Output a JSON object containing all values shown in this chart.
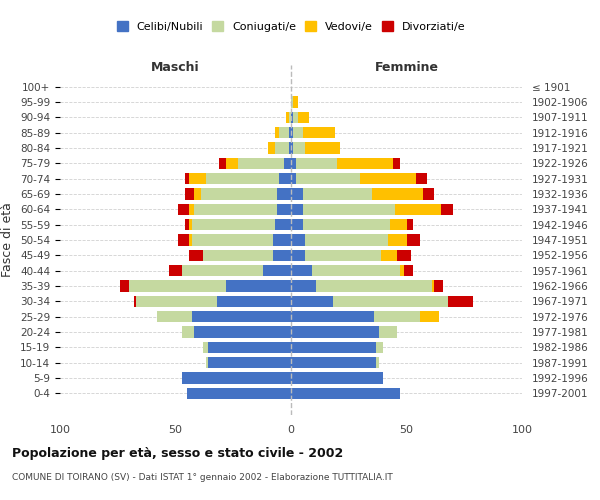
{
  "age_groups": [
    "100+",
    "95-99",
    "90-94",
    "85-89",
    "80-84",
    "75-79",
    "70-74",
    "65-69",
    "60-64",
    "55-59",
    "50-54",
    "45-49",
    "40-44",
    "35-39",
    "30-34",
    "25-29",
    "20-24",
    "15-19",
    "10-14",
    "5-9",
    "0-4"
  ],
  "birth_years": [
    "≤ 1901",
    "1902-1906",
    "1907-1911",
    "1912-1916",
    "1917-1921",
    "1922-1926",
    "1927-1931",
    "1932-1936",
    "1937-1941",
    "1942-1946",
    "1947-1951",
    "1952-1956",
    "1957-1961",
    "1962-1966",
    "1967-1971",
    "1972-1976",
    "1977-1981",
    "1982-1986",
    "1987-1991",
    "1992-1996",
    "1997-2001"
  ],
  "maschi": {
    "celibi": [
      0,
      0,
      0,
      1,
      1,
      3,
      5,
      6,
      6,
      7,
      8,
      8,
      12,
      28,
      32,
      43,
      42,
      36,
      36,
      47,
      45
    ],
    "coniugati": [
      0,
      0,
      1,
      4,
      6,
      20,
      32,
      33,
      36,
      36,
      35,
      30,
      35,
      42,
      35,
      15,
      5,
      2,
      1,
      0,
      0
    ],
    "vedovi": [
      0,
      0,
      1,
      2,
      3,
      5,
      7,
      3,
      2,
      1,
      1,
      0,
      0,
      0,
      0,
      0,
      0,
      0,
      0,
      0,
      0
    ],
    "divorziati": [
      0,
      0,
      0,
      0,
      0,
      3,
      2,
      4,
      5,
      2,
      5,
      6,
      6,
      4,
      1,
      0,
      0,
      0,
      0,
      0,
      0
    ]
  },
  "femmine": {
    "nubili": [
      0,
      0,
      1,
      1,
      1,
      2,
      2,
      5,
      5,
      5,
      6,
      6,
      9,
      11,
      18,
      36,
      38,
      37,
      37,
      40,
      47
    ],
    "coniugate": [
      0,
      1,
      2,
      4,
      5,
      18,
      28,
      30,
      40,
      38,
      36,
      33,
      38,
      50,
      50,
      20,
      8,
      3,
      1,
      0,
      0
    ],
    "vedove": [
      0,
      2,
      5,
      14,
      15,
      24,
      24,
      22,
      20,
      7,
      8,
      7,
      2,
      1,
      0,
      8,
      0,
      0,
      0,
      0,
      0
    ],
    "divorziate": [
      0,
      0,
      0,
      0,
      0,
      3,
      5,
      5,
      5,
      3,
      6,
      6,
      4,
      4,
      11,
      0,
      0,
      0,
      0,
      0,
      0
    ]
  },
  "colors": {
    "celibi": "#4472c4",
    "coniugati": "#c5d9a0",
    "vedovi": "#ffc000",
    "divorziati": "#cc0000"
  },
  "xlim": 100,
  "title": "Popolazione per età, sesso e stato civile - 2002",
  "subtitle": "COMUNE DI TOIRANO (SV) - Dati ISTAT 1° gennaio 2002 - Elaborazione TUTTITALIA.IT",
  "ylabel_left": "Fasce di età",
  "xlabel_left": "Maschi",
  "xlabel_right": "Femmine",
  "background_color": "#ffffff",
  "grid_color": "#cccccc"
}
